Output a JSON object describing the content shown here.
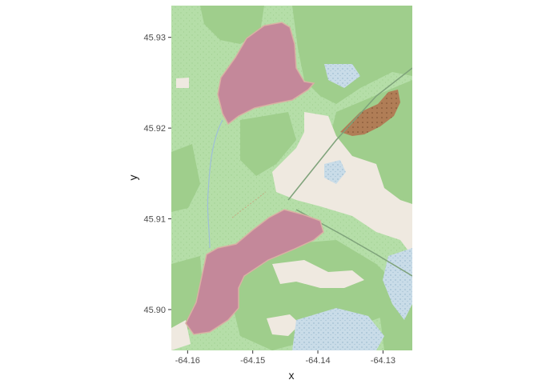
{
  "chart_data": {
    "type": "map",
    "xlabel": "x",
    "ylabel": "y",
    "xlim": [
      -64.1625,
      -64.1255
    ],
    "ylim": [
      45.8955,
      45.9335
    ],
    "x_ticks": [
      {
        "value": -64.16,
        "label": "-64.16"
      },
      {
        "value": -64.15,
        "label": "-64.15"
      },
      {
        "value": -64.14,
        "label": "-64.14"
      },
      {
        "value": -64.13,
        "label": "-64.13"
      }
    ],
    "y_ticks": [
      {
        "value": 45.9,
        "label": "45.90"
      },
      {
        "value": 45.91,
        "label": "45.91"
      },
      {
        "value": 45.92,
        "label": "45.92"
      },
      {
        "value": 45.93,
        "label": "45.93"
      }
    ],
    "grid": false,
    "colors": {
      "forest": "#b5dea8",
      "wood": "#9fce8c",
      "clearing": "#efe9e0",
      "wetland": "#c9dce8",
      "highlight_polygon": "#c4889a",
      "quarry": "#b07d56"
    }
  }
}
